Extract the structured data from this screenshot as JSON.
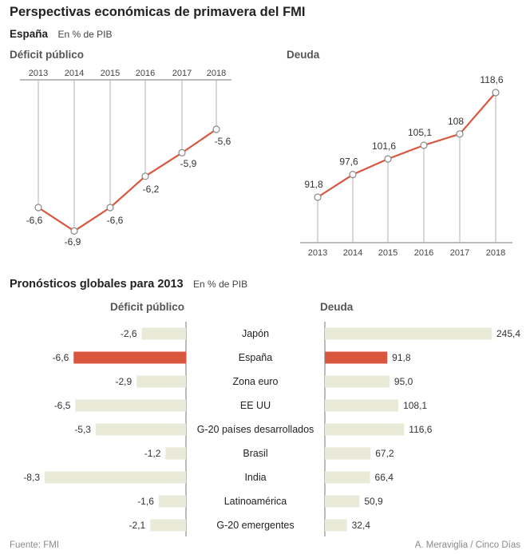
{
  "title": "Perspectivas económicas de primavera del FMI",
  "subtitle": {
    "country": "España",
    "unit": "En % de PIB"
  },
  "section2": {
    "title": "Pronósticos globales para 2013",
    "unit": "En % de PIB"
  },
  "footer": {
    "source": "Fuente: FMI",
    "credit": "A. Meraviglia / Cinco Días"
  },
  "colors": {
    "accent": "#d9573e",
    "bar": "#e9ead8",
    "axis": "#888888",
    "text": "#333333"
  },
  "chart_data": [
    {
      "type": "line",
      "title": "Déficit público",
      "x": [
        "2013",
        "2014",
        "2015",
        "2016",
        "2017",
        "2018"
      ],
      "values": [
        -6.6,
        -6.9,
        -6.6,
        -6.2,
        -5.9,
        -5.6
      ],
      "labels": [
        "-6,6",
        "-6,9",
        "-6,6",
        "-6,2",
        "-5,9",
        "-5,6"
      ],
      "ylim": [
        -7.0,
        -4.5
      ],
      "x_axis_position": "top",
      "grid": "vertical drop lines"
    },
    {
      "type": "line",
      "title": "Deuda",
      "x": [
        "2013",
        "2014",
        "2015",
        "2016",
        "2017",
        "2018"
      ],
      "values": [
        91.8,
        97.6,
        101.6,
        105.1,
        108.0,
        118.6
      ],
      "labels": [
        "91,8",
        "97,6",
        "101,6",
        "105,1",
        "108",
        "118,6"
      ],
      "ylim": [
        70,
        118.6
      ],
      "x_axis_position": "bottom",
      "grid": "vertical drop lines"
    },
    {
      "type": "bar",
      "title": "Déficit público",
      "orientation": "horizontal",
      "direction": "leftward",
      "categories": [
        "Japón",
        "España",
        "Zona euro",
        "EE UU",
        "G-20 países desarrollados",
        "Brasil",
        "India",
        "Latinoamérica",
        "G-20 emergentes"
      ],
      "values": [
        -2.6,
        -6.6,
        -2.9,
        -6.5,
        -5.3,
        -1.2,
        -8.3,
        -1.6,
        -2.1
      ],
      "labels": [
        "-2,6",
        "-6,6",
        "-2,9",
        "-6,5",
        "-5,3",
        "-1,2",
        "-8,3",
        "-1,6",
        "-2,1"
      ],
      "highlight": "España"
    },
    {
      "type": "bar",
      "title": "Deuda",
      "orientation": "horizontal",
      "direction": "rightward",
      "categories": [
        "Japón",
        "España",
        "Zona euro",
        "EE UU",
        "G-20 países desarrollados",
        "Brasil",
        "India",
        "Latinoamérica",
        "G-20 emergentes"
      ],
      "values": [
        245.4,
        91.8,
        95.0,
        108.1,
        116.6,
        67.2,
        66.4,
        50.9,
        32.4
      ],
      "labels": [
        "245,4",
        "91,8",
        "95,0",
        "108,1",
        "116,6",
        "67,2",
        "66,4",
        "50,9",
        "32,4"
      ],
      "highlight": "España"
    }
  ]
}
